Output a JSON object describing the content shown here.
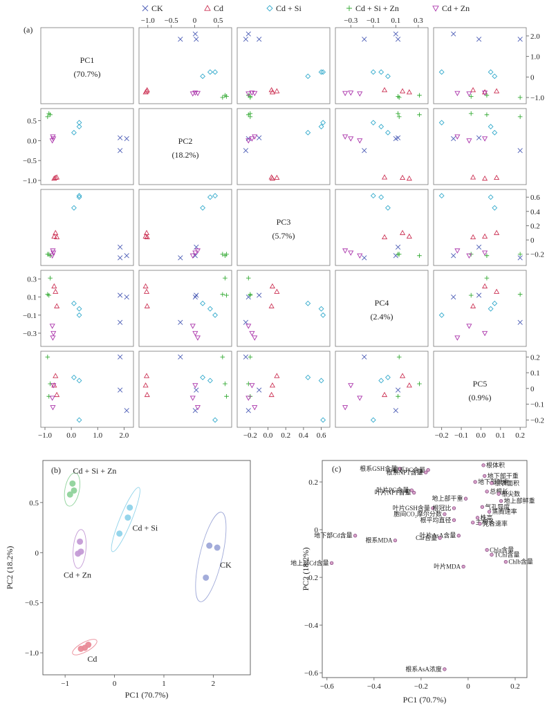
{
  "legend": {
    "placement": "top",
    "entries": [
      {
        "name": "CK",
        "marker": "x",
        "color": "#4a5bb5"
      },
      {
        "name": "Cd",
        "marker": "triangle-up",
        "color": "#cc3355"
      },
      {
        "name": "Cd + Si",
        "marker": "diamond",
        "color": "#33aacc"
      },
      {
        "name": "Cd + Si + Zn",
        "marker": "plus",
        "color": "#33aa33"
      },
      {
        "name": "Cd + Zn",
        "marker": "triangle-down",
        "color": "#aa33aa"
      }
    ]
  },
  "chart_data": [
    {
      "type": "scatter",
      "panel_label": "(a)",
      "variables": [
        "PC1",
        "PC2",
        "PC3",
        "PC4",
        "PC5"
      ],
      "diagonal_labels": [
        "PC1",
        "PC2",
        "PC3",
        "PC4",
        "PC5"
      ],
      "diagonal_values": [
        "(70.7%)",
        "(18.2%)",
        "(5.7%)",
        "(2.4%)",
        "(0.9%)"
      ],
      "ranges": [
        [
          -1.0,
          2.2
        ],
        [
          -1.0,
          0.7
        ],
        [
          -0.3,
          0.65
        ],
        [
          -0.4,
          0.35
        ],
        [
          -0.22,
          0.21
        ]
      ],
      "ticks": [
        [
          -1.0,
          0.0,
          1.0,
          2.0
        ],
        [
          -1.0,
          -0.5,
          0.0,
          0.5
        ],
        [
          -0.2,
          0.0,
          0.2,
          0.4,
          0.6
        ],
        [
          -0.3,
          -0.1,
          0.1,
          0.3
        ],
        [
          -0.2,
          -0.1,
          0.0,
          0.1,
          0.2
        ]
      ],
      "tick_labels": [
        [
          "−1.0",
          "0.0",
          "1.0",
          "2.0"
        ],
        [
          "−1.0",
          "−0.5",
          "0.0",
          "0.5"
        ],
        [
          "−0.2",
          "0.0",
          "0.2",
          "0.4",
          "0.6"
        ],
        [
          "−0.3",
          "−0.1",
          "0.1",
          "0.3"
        ],
        [
          "−0.2",
          "−0.1",
          "0.0",
          "0.1",
          "0.2"
        ]
      ],
      "top_axis": {
        "ranges": [
          [
            -1.1,
            0.7
          ],
          [
            -0.4,
            0.35
          ]
        ],
        "ticks": [
          [
            -1.0,
            -0.5,
            0.0,
            0.5
          ],
          [
            -0.3,
            -0.1,
            0.1,
            0.3
          ]
        ],
        "tick_labels": [
          [
            "−1.0",
            "−0.5",
            "0",
            "0.5"
          ],
          [
            "−0.3",
            "−0.1",
            "0.1",
            "0.3"
          ]
        ]
      },
      "right_axis": {
        "ranges": [
          [
            -1.1,
            2.2
          ],
          [
            -0.3,
            0.65
          ],
          [
            -0.22,
            0.21
          ]
        ],
        "ticks": [
          [
            -1.0,
            0.0,
            1.0,
            2.0
          ],
          [
            -0.2,
            0.0,
            0.2,
            0.4,
            0.6
          ],
          [
            -0.2,
            -0.1,
            0.0,
            0.1,
            0.2
          ]
        ],
        "tick_labels": [
          [
            "−1.0",
            "0",
            "1.0",
            "2.0"
          ],
          [
            "−0.2",
            "0",
            "0.2",
            "0.4",
            "0.6"
          ],
          [
            "−0.2",
            "−0.1",
            "0",
            "0.1",
            "0.2"
          ]
        ]
      },
      "series": [
        {
          "name": "CK",
          "points": [
            [
              1.85,
              0.07,
              -0.1,
              0.12,
              -0.01
            ],
            [
              2.1,
              0.05,
              -0.22,
              0.1,
              -0.14
            ],
            [
              1.85,
              -0.25,
              -0.25,
              -0.18,
              0.2
            ]
          ]
        },
        {
          "name": "Cd",
          "points": [
            [
              -0.65,
              -0.95,
              0.05,
              0.22,
              0.02
            ],
            [
              -0.6,
              -0.93,
              0.1,
              0.16,
              0.08
            ],
            [
              -0.55,
              -0.92,
              0.04,
              0.0,
              -0.04
            ]
          ]
        },
        {
          "name": "Cd + Si",
          "points": [
            [
              0.1,
              0.2,
              0.45,
              0.03,
              0.07
            ],
            [
              0.3,
              0.35,
              0.6,
              -0.03,
              0.05
            ],
            [
              0.3,
              0.45,
              0.62,
              -0.1,
              -0.2
            ]
          ]
        },
        {
          "name": "Cd + Si + Zn",
          "points": [
            [
              -0.9,
              0.6,
              -0.2,
              0.13,
              0.2
            ],
            [
              -0.8,
              0.65,
              -0.22,
              0.31,
              0.03
            ],
            [
              -0.85,
              0.68,
              -0.2,
              0.12,
              -0.05
            ]
          ]
        },
        {
          "name": "Cd + Zn",
          "points": [
            [
              -0.72,
              0.0,
              -0.22,
              -0.22,
              -0.06
            ],
            [
              -0.68,
              0.05,
              -0.18,
              -0.3,
              0.02
            ],
            [
              -0.7,
              0.1,
              -0.15,
              -0.35,
              -0.12
            ]
          ]
        }
      ]
    },
    {
      "type": "scatter",
      "panel_label": "(b)",
      "xlabel": "PC1 (70.7%)",
      "ylabel": "PC2 (18.2%)",
      "xlim": [
        -1.45,
        2.75
      ],
      "ylim": [
        -1.22,
        0.92
      ],
      "x_ticks": [
        -1,
        0,
        1,
        2
      ],
      "y_ticks": [
        -1.0,
        -0.5,
        0.0,
        0.5
      ],
      "x_tick_labels": [
        "−1",
        "0",
        "1",
        "2"
      ],
      "y_tick_labels": [
        "−1.0",
        "−0.5",
        "0",
        "0.5"
      ],
      "series": [
        {
          "name": "CK",
          "color": "#9ea8d8",
          "points": [
            [
              1.85,
              -0.25
            ],
            [
              1.92,
              0.07
            ],
            [
              2.08,
              0.05
            ]
          ],
          "label_point": [
            2.25,
            -0.15
          ]
        },
        {
          "name": "Cd",
          "color": "#e98a97",
          "points": [
            [
              -0.68,
              -0.96
            ],
            [
              -0.6,
              -0.95
            ],
            [
              -0.53,
              -0.92
            ]
          ],
          "label_point": [
            -0.45,
            -1.09
          ]
        },
        {
          "name": "Cd + Si",
          "color": "#8fd3ea",
          "points": [
            [
              0.1,
              0.19
            ],
            [
              0.27,
              0.35
            ],
            [
              0.31,
              0.45
            ]
          ],
          "label_point": [
            0.62,
            0.22
          ]
        },
        {
          "name": "Cd + Si + Zn",
          "color": "#8fd39b",
          "points": [
            [
              -0.9,
              0.58
            ],
            [
              -0.82,
              0.62
            ],
            [
              -0.85,
              0.69
            ]
          ],
          "label_point": [
            -0.4,
            0.79
          ]
        },
        {
          "name": "Cd + Zn",
          "color": "#c49bd6",
          "points": [
            [
              -0.74,
              -0.01
            ],
            [
              -0.68,
              0.01
            ],
            [
              -0.7,
              0.11
            ]
          ],
          "label_point": [
            -0.75,
            -0.25
          ]
        }
      ]
    },
    {
      "type": "scatter",
      "panel_label": "(c)",
      "xlabel": "PC1 (70.7%)",
      "ylabel": "PC2 (18.2%)",
      "xlim": [
        -0.62,
        0.25
      ],
      "ylim": [
        -0.62,
        0.29
      ],
      "x_ticks": [
        -0.6,
        -0.4,
        -0.2,
        0.0,
        0.2
      ],
      "y_ticks": [
        -0.6,
        -0.4,
        -0.2,
        0.0,
        0.2
      ],
      "x_tick_labels": [
        "−0.6",
        "−0.4",
        "−0.2",
        "0",
        "0.2"
      ],
      "y_tick_labels": [
        "−0.6",
        "−0.4",
        "−0.2",
        "0",
        "0.2"
      ],
      "points": [
        {
          "label": "根系GSH含量",
          "x": -0.29,
          "y": 0.255
        },
        {
          "label": "根系PC含量",
          "x": -0.17,
          "y": 0.25
        },
        {
          "label": "根体积",
          "x": 0.065,
          "y": 0.27
        },
        {
          "label": "根系NPT含量",
          "x": -0.18,
          "y": 0.24
        },
        {
          "label": "地下部干重",
          "x": 0.07,
          "y": 0.225
        },
        {
          "label": "地下部鲜重",
          "x": 0.03,
          "y": 0.2
        },
        {
          "label": "根表面积",
          "x": 0.1,
          "y": 0.195
        },
        {
          "label": "叶片PC含量",
          "x": -0.24,
          "y": 0.165
        },
        {
          "label": "叶片NPT含量",
          "x": -0.23,
          "y": 0.155
        },
        {
          "label": "总根长",
          "x": 0.08,
          "y": 0.16
        },
        {
          "label": "根尖数",
          "x": 0.13,
          "y": 0.15
        },
        {
          "label": "地上部干重",
          "x": -0.01,
          "y": 0.13
        },
        {
          "label": "地上部鲜重",
          "x": 0.14,
          "y": 0.12
        },
        {
          "label": "叶片GSH含量",
          "x": -0.15,
          "y": 0.09
        },
        {
          "label": "根冠比",
          "x": -0.06,
          "y": 0.09
        },
        {
          "label": "气孔导度",
          "x": 0.06,
          "y": 0.095
        },
        {
          "label": "胞间CO₂摩尔分数",
          "x": -0.1,
          "y": 0.065
        },
        {
          "label": "蒸腾速率",
          "x": 0.09,
          "y": 0.075
        },
        {
          "label": "根平均直径",
          "x": -0.06,
          "y": 0.04
        },
        {
          "label": "株高",
          "x": 0.04,
          "y": 0.05
        },
        {
          "label": "主根长",
          "x": 0.02,
          "y": 0.03
        },
        {
          "label": "光合速率",
          "x": 0.05,
          "y": 0.025
        },
        {
          "label": "地下部Cd含量",
          "x": -0.48,
          "y": -0.025
        },
        {
          "label": "叶片AsA含量",
          "x": -0.04,
          "y": -0.025
        },
        {
          "label": "Car含量",
          "x": -0.12,
          "y": -0.035
        },
        {
          "label": "根系MDA",
          "x": -0.31,
          "y": -0.045
        },
        {
          "label": "Chla含量",
          "x": 0.08,
          "y": -0.085
        },
        {
          "label": "TChl含量",
          "x": 0.1,
          "y": -0.105
        },
        {
          "label": "地上部Cd含量",
          "x": -0.58,
          "y": -0.14
        },
        {
          "label": "Chlb含量",
          "x": 0.16,
          "y": -0.135
        },
        {
          "label": "叶片MDA",
          "x": -0.02,
          "y": -0.155
        },
        {
          "label": "根系AsA浓度",
          "x": -0.1,
          "y": -0.585
        }
      ]
    }
  ]
}
